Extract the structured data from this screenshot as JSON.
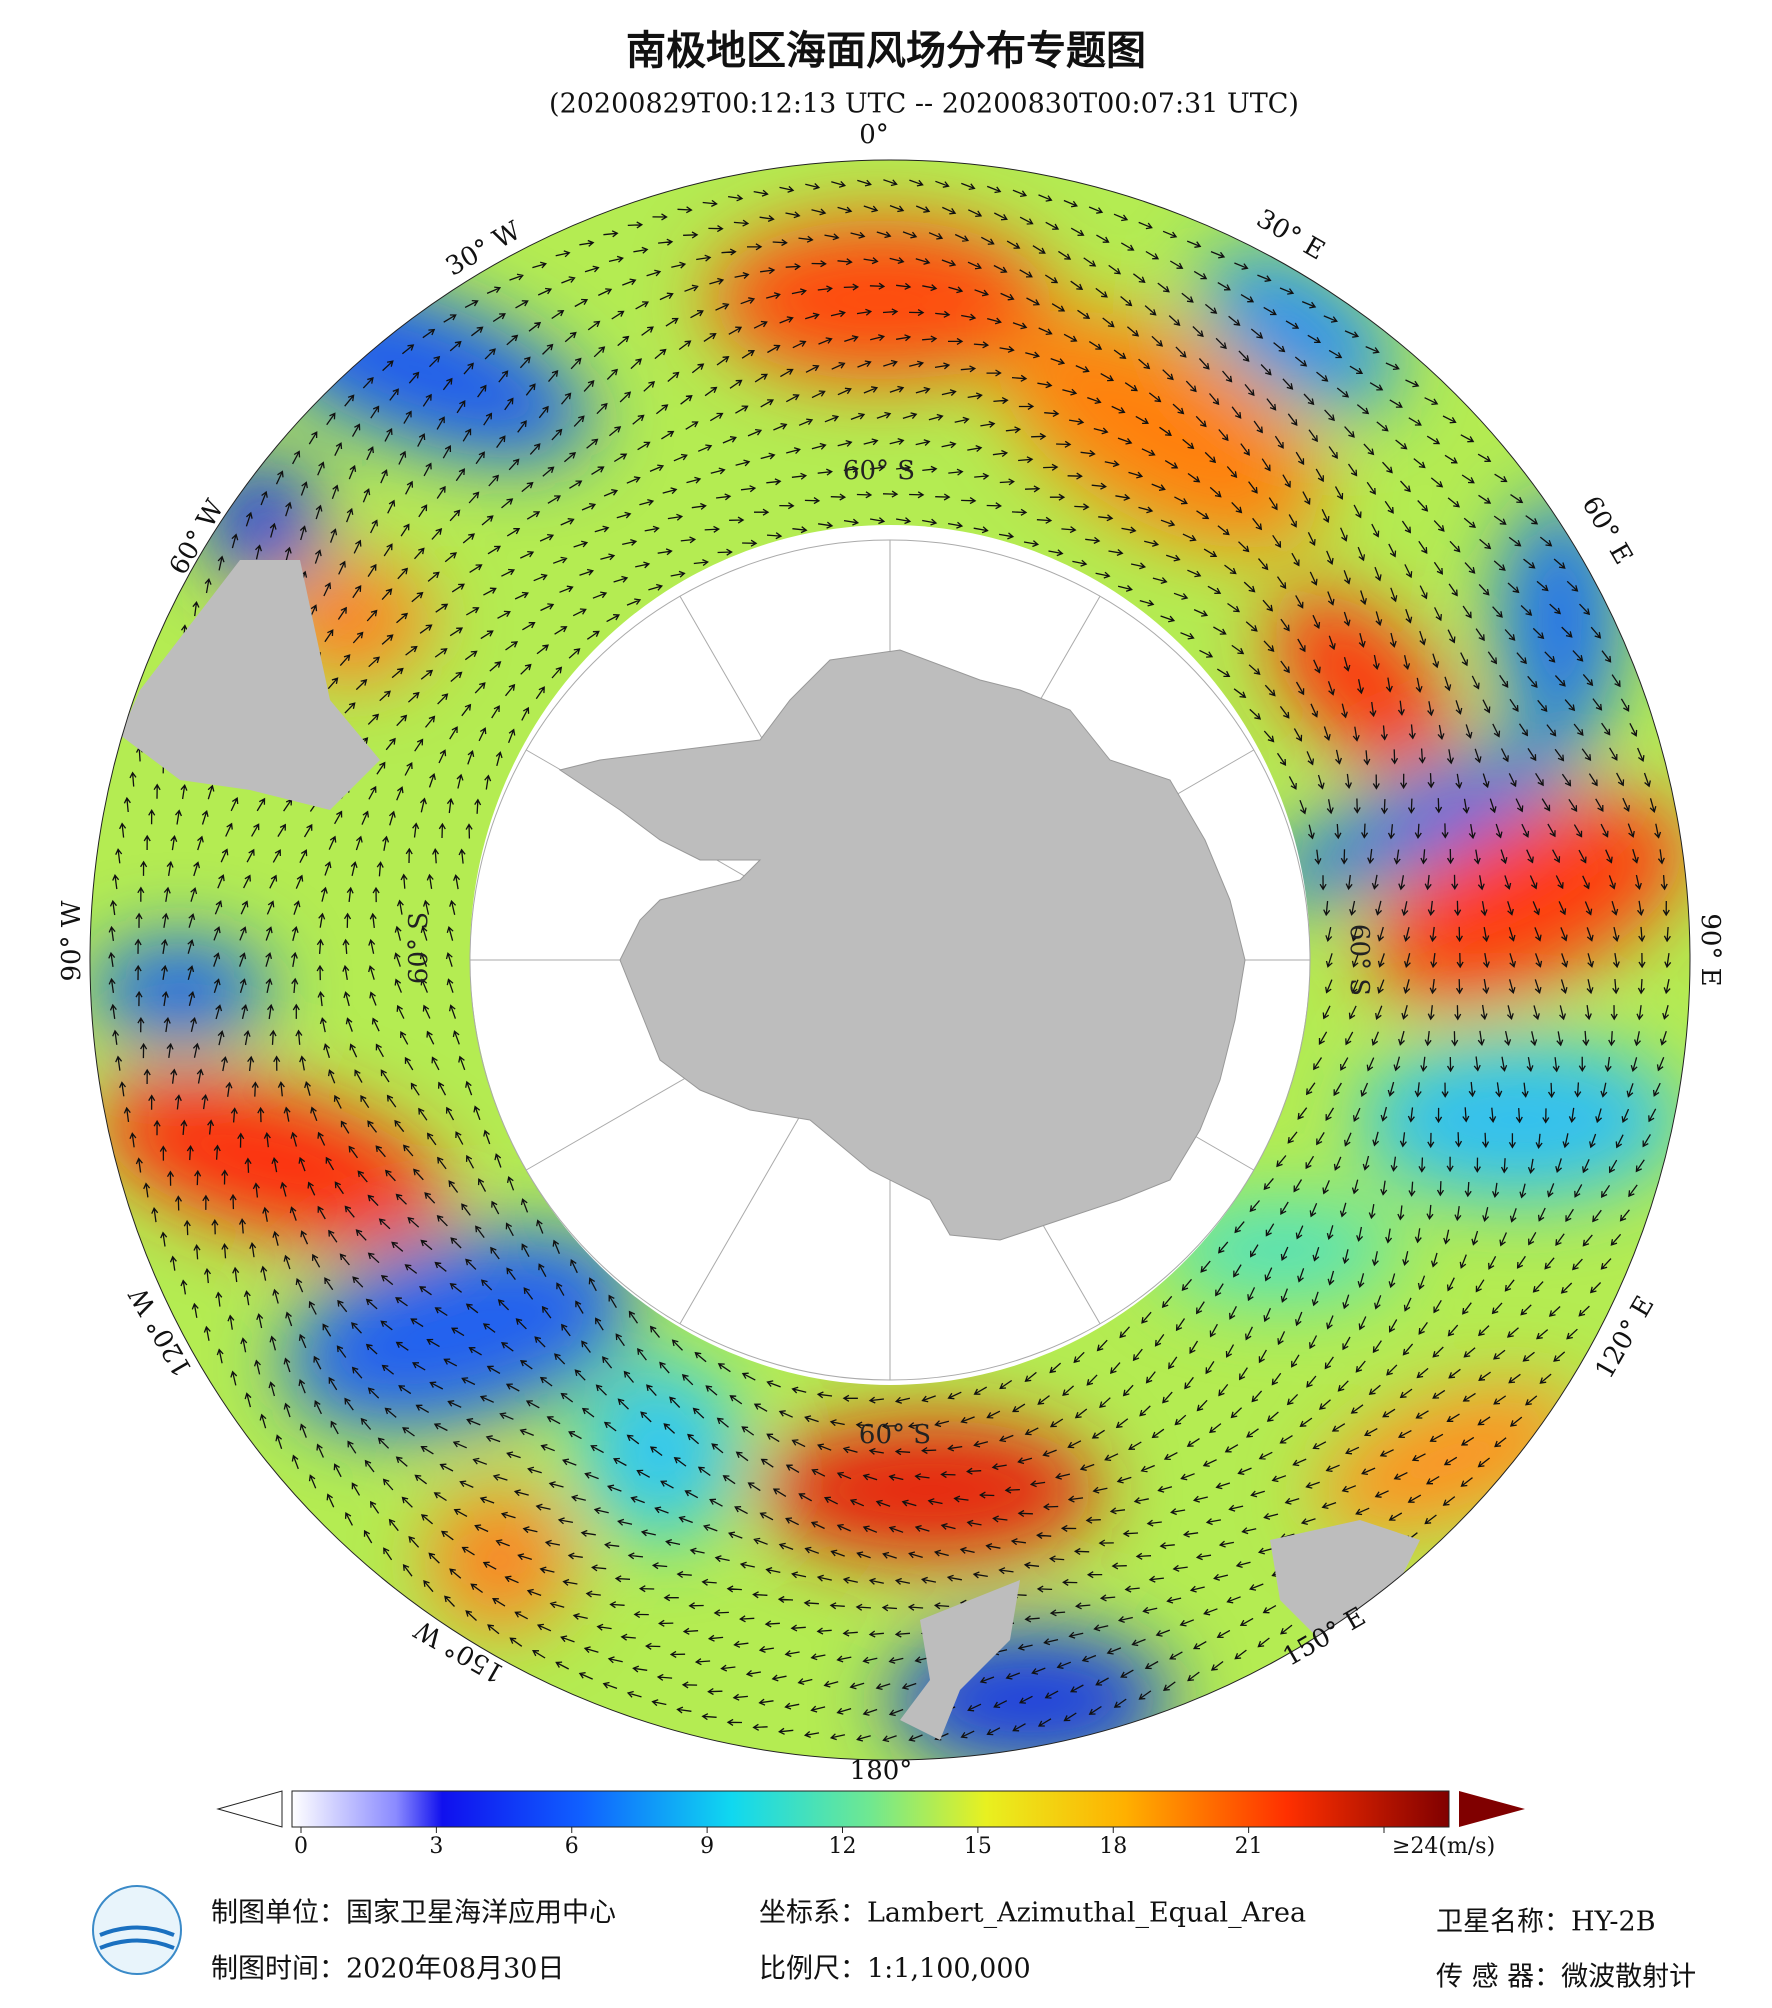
{
  "header": {
    "title": "南极地区海面风场分布专题图",
    "subtitle": "(20200829T00:12:13 UTC -- 20200830T00:07:31 UTC)"
  },
  "map": {
    "lon_labels": [
      "0°",
      "30° E",
      "60° E",
      "90° E",
      "120° E",
      "150° E",
      "180°",
      "150° W",
      "120° W",
      "90° W",
      "60° W",
      "30° W"
    ],
    "lat_labels": [
      "60° S",
      "60° S",
      "60° S",
      "60° S"
    ]
  },
  "colorbar": {
    "range": [
      0,
      24
    ],
    "ticks": [
      0,
      3,
      6,
      9,
      12,
      15,
      18,
      21,
      {
        "value": 24,
        "label": "≥24(m/s)"
      }
    ]
  },
  "footer": {
    "unit": "制图单位：国家卫星海洋应用中心",
    "date": "制图时间：2020年08月30日",
    "crs": "坐标系：Lambert_Azimuthal_Equal_Area",
    "scale": "比例尺：1:1,100,000",
    "satellite": "卫星名称：HY-2B",
    "sensor": "传 感 器：微波散射计"
  }
}
